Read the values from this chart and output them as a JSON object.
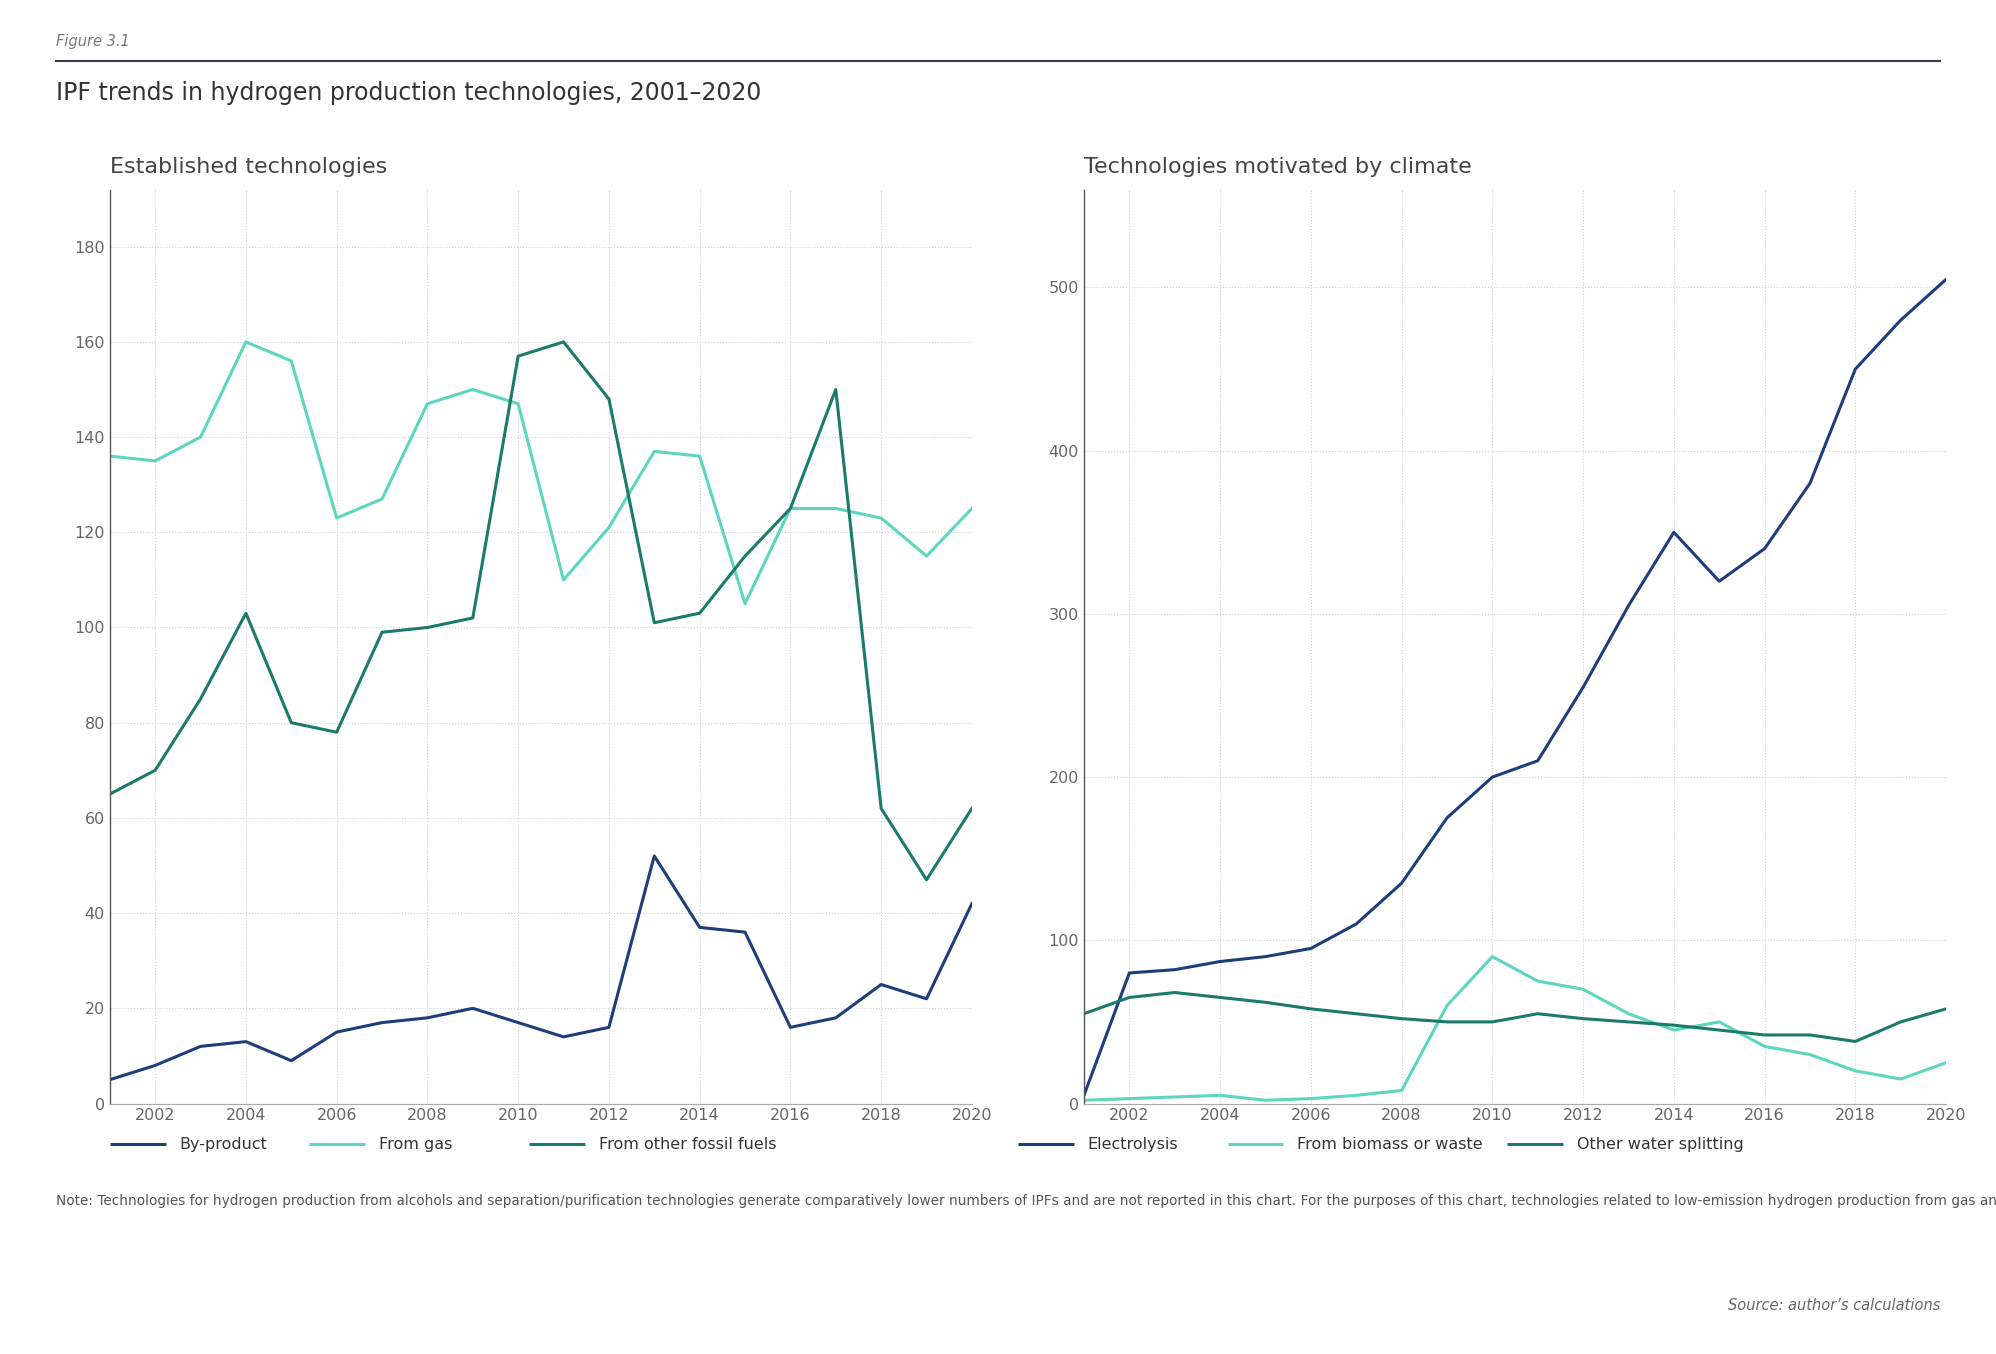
{
  "years": [
    2001,
    2002,
    2003,
    2004,
    2005,
    2006,
    2007,
    2008,
    2009,
    2010,
    2011,
    2012,
    2013,
    2014,
    2015,
    2016,
    2017,
    2018,
    2019,
    2020
  ],
  "left": {
    "title": "Established technologies",
    "by_product": [
      5,
      8,
      12,
      13,
      9,
      15,
      17,
      18,
      20,
      17,
      14,
      16,
      52,
      37,
      36,
      16,
      18,
      25,
      22,
      42
    ],
    "from_gas": [
      136,
      135,
      140,
      160,
      156,
      123,
      127,
      147,
      150,
      147,
      110,
      121,
      137,
      136,
      105,
      125,
      125,
      123,
      115,
      125
    ],
    "from_other_fossil": [
      65,
      70,
      85,
      103,
      80,
      78,
      99,
      100,
      102,
      157,
      160,
      148,
      101,
      103,
      115,
      125,
      150,
      62,
      47,
      62
    ]
  },
  "right": {
    "title": "Technologies motivated by climate",
    "electrolysis": [
      5,
      80,
      82,
      87,
      90,
      95,
      110,
      135,
      175,
      200,
      210,
      255,
      305,
      350,
      320,
      340,
      380,
      450,
      480,
      505
    ],
    "from_biomass": [
      2,
      3,
      4,
      5,
      2,
      3,
      5,
      8,
      60,
      90,
      75,
      70,
      55,
      45,
      50,
      35,
      30,
      20,
      15,
      25
    ],
    "other_water": [
      55,
      65,
      68,
      65,
      62,
      58,
      55,
      52,
      50,
      50,
      55,
      52,
      50,
      48,
      45,
      42,
      42,
      38,
      50,
      58
    ]
  },
  "colors": {
    "by_product": "#1f3d7a",
    "from_gas": "#5dd6be",
    "from_other_fossil": "#1b7a6a",
    "electrolysis": "#1f3d7a",
    "from_biomass": "#5dd6be",
    "other_water": "#1b7a6a"
  },
  "figure_label": "Figure 3.1",
  "main_title": "IPF trends in hydrogen production technologies, 2001–2020",
  "note": "Note: Technologies for hydrogen production from alcohols and separation/purification technologies generate comparatively lower numbers of IPFs and are not reported in this chart. For the purposes of this chart, technologies related to low-emission hydrogen production from gas and other fossil fuels have been pooled with the respective categories of established technologies.",
  "source": "Source: author’s calculations",
  "legend_left": [
    "By-product",
    "From gas",
    "From other fossil fuels"
  ],
  "legend_right": [
    "Electrolysis",
    "From biomass or waste",
    "Other water splitting"
  ],
  "left_ylim": [
    0,
    192
  ],
  "right_ylim": [
    0,
    560
  ],
  "left_yticks": [
    0,
    20,
    40,
    60,
    80,
    100,
    120,
    140,
    160,
    180
  ],
  "right_yticks": [
    0,
    100,
    200,
    300,
    400,
    500
  ],
  "xticks": [
    2002,
    2004,
    2006,
    2008,
    2010,
    2012,
    2014,
    2016,
    2018,
    2020
  ],
  "bg_color": "#ffffff",
  "grid_color": "#cccccc",
  "line_width": 2.2
}
